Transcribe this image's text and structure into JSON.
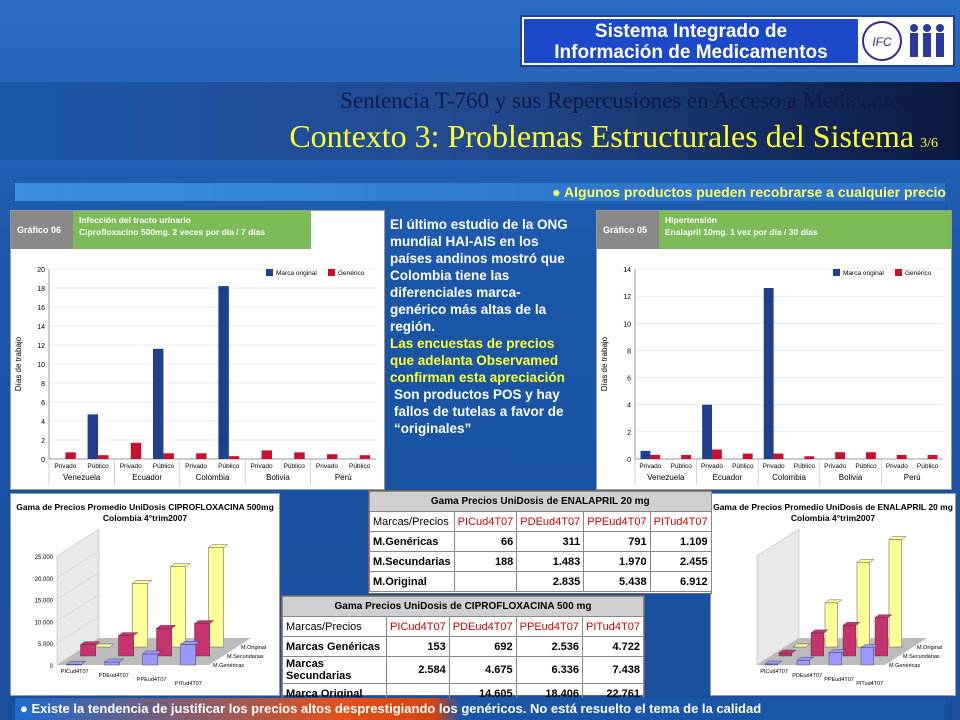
{
  "logo": {
    "line1": "Sistema Integrado de",
    "line2": "Información de Medicamentos",
    "badge": "IFC"
  },
  "header": {
    "subtitle": "Sentencia T-760 y sus Repercusiones en Acceso a Medicamentos",
    "title": "Contexto 3: Problemas Estructurales del Sistema",
    "slide_num": "3/6"
  },
  "bullet_top": "Algunos productos pueden recobrarse a cualquier precio",
  "bullet_bottom": "Existe la tendencia de justificar los precios altos desprestigiando los genéricos. No está resuelto el tema de la calidad",
  "middle_text": {
    "w1": "El último estudio de la ONG mundial HAI-AIS en los países andinos mostró que Colombia tiene las diferenciales marca-genérico más altas de la región.",
    "y1": "Las encuestas de precios que adelanta Observamed confirman esta apreciación",
    "w2": "Son productos POS y hay fallos de tutelas a favor de “originales”"
  },
  "chart_data": [
    {
      "type": "bar",
      "badge": "Gráfico 06",
      "title": "Infección del tracto urinario",
      "subtitle": "Ciprofloxacino 500mg. 2 veces por día / 7 días",
      "ylabel": "Días de trabajo",
      "ylim": [
        0,
        20
      ],
      "yticks": [
        "0",
        "2",
        "4",
        "6",
        "8",
        "10",
        "12",
        "14",
        "16",
        "18",
        "20"
      ],
      "countries": [
        "Venezuela",
        "Ecuador",
        "Colombia",
        "Bolivia",
        "Perú"
      ],
      "sectors": [
        "Privado",
        "Público"
      ],
      "series": [
        {
          "name": "Marca original",
          "color": "#1f3f8f",
          "values": [
            0,
            4.7,
            0,
            11.6,
            0,
            18.2,
            0,
            0,
            0,
            0
          ]
        },
        {
          "name": "Genérico",
          "color": "#c8102e",
          "values": [
            0.7,
            0.4,
            1.7,
            0.6,
            0.6,
            0.3,
            0.9,
            0.7,
            0.5,
            0.4
          ]
        }
      ]
    },
    {
      "type": "bar",
      "badge": "Gráfico 05",
      "title": "Hipertensión",
      "subtitle": "Enalapril 10mg. 1 vez por día / 30 días",
      "ylabel": "Días de trabajo",
      "ylim": [
        0,
        14
      ],
      "yticks": [
        "0",
        "2",
        "4",
        "6",
        "8",
        "10",
        "12",
        "14"
      ],
      "countries": [
        "Venezuela",
        "Ecuador",
        "Colombia",
        "Bolivia",
        "Perú"
      ],
      "sectors": [
        "Privado",
        "Público"
      ],
      "series": [
        {
          "name": "Marca original",
          "color": "#1f3f8f",
          "values": [
            0.6,
            0,
            4,
            0,
            12.6,
            0,
            0,
            0,
            0,
            0
          ]
        },
        {
          "name": "Genérico",
          "color": "#c8102e",
          "values": [
            0.3,
            0.3,
            0.7,
            0.4,
            0.4,
            0.2,
            0.5,
            0.5,
            0.3,
            0.3
          ]
        }
      ]
    },
    {
      "type": "bar",
      "title": "Gama de Precios Promedio UniDosis CIPROFLOXACINA 500mg",
      "subtitle": "Colombia 4°trim2007",
      "yticks": [
        "0",
        "5.000",
        "10.000",
        "15.000",
        "20.000",
        "25.000"
      ],
      "ylim": [
        0,
        25000
      ],
      "categories": [
        "PICud4T07",
        "PDEud4T07",
        "PPEud4T07",
        "PITud4T07"
      ],
      "series": [
        {
          "name": "M.Original",
          "color": "#ffff99",
          "values": [
            0,
            14605,
            18406,
            22761
          ]
        },
        {
          "name": "M.Secundarias",
          "color": "#c8326e",
          "values": [
            2584,
            4675,
            6336,
            7438
          ]
        },
        {
          "name": "M.Genéricas",
          "color": "#9999ff",
          "values": [
            153,
            692,
            2536,
            4722
          ]
        }
      ]
    },
    {
      "type": "bar",
      "title": "Gama de Precios Promedio UniDosis de ENALAPRIL 20 mg",
      "subtitle": "Colombia 4°trim2007",
      "ylim": [
        0,
        7000
      ],
      "categories": [
        "PICud4T07",
        "PDEud4T07",
        "PPEud4T07",
        "PITud4T07"
      ],
      "series": [
        {
          "name": "M.Original",
          "color": "#ffff99",
          "values": [
            0,
            2835,
            5438,
            6912
          ]
        },
        {
          "name": "M.Secundarias",
          "color": "#c8326e",
          "values": [
            188,
            1483,
            1970,
            2455
          ]
        },
        {
          "name": "M.Genéricas",
          "color": "#9999ff",
          "values": [
            66,
            311,
            791,
            1109
          ]
        }
      ]
    }
  ],
  "table_enalapril": {
    "caption": "Gama Precios UniDosis de ENALAPRIL 20 mg",
    "headers": [
      "Marcas/Precios",
      "PICud4T07",
      "PDEud4T07",
      "PPEud4T07",
      "PITud4T07"
    ],
    "rows": [
      [
        "M.Genéricas",
        "66",
        "311",
        "791",
        "1.109"
      ],
      [
        "M.Secundarias",
        "188",
        "1.483",
        "1.970",
        "2.455"
      ],
      [
        "M.Original",
        "",
        "2.835",
        "5.438",
        "6.912"
      ]
    ]
  },
  "table_cipro": {
    "caption": "Gama Precios UniDosis de CIPROFLOXACINA 500 mg",
    "headers": [
      "Marcas/Precios",
      "PICud4T07",
      "PDEud4T07",
      "PPEud4T07",
      "PITud4T07"
    ],
    "rows": [
      [
        "Marcas Genéricas",
        "153",
        "692",
        "2.536",
        "4.722"
      ],
      [
        "Marcas Secundarias",
        "2.584",
        "4.675",
        "6.336",
        "7.438"
      ],
      [
        "Marca Original",
        "",
        "14.605",
        "18.406",
        "22.761"
      ]
    ]
  }
}
